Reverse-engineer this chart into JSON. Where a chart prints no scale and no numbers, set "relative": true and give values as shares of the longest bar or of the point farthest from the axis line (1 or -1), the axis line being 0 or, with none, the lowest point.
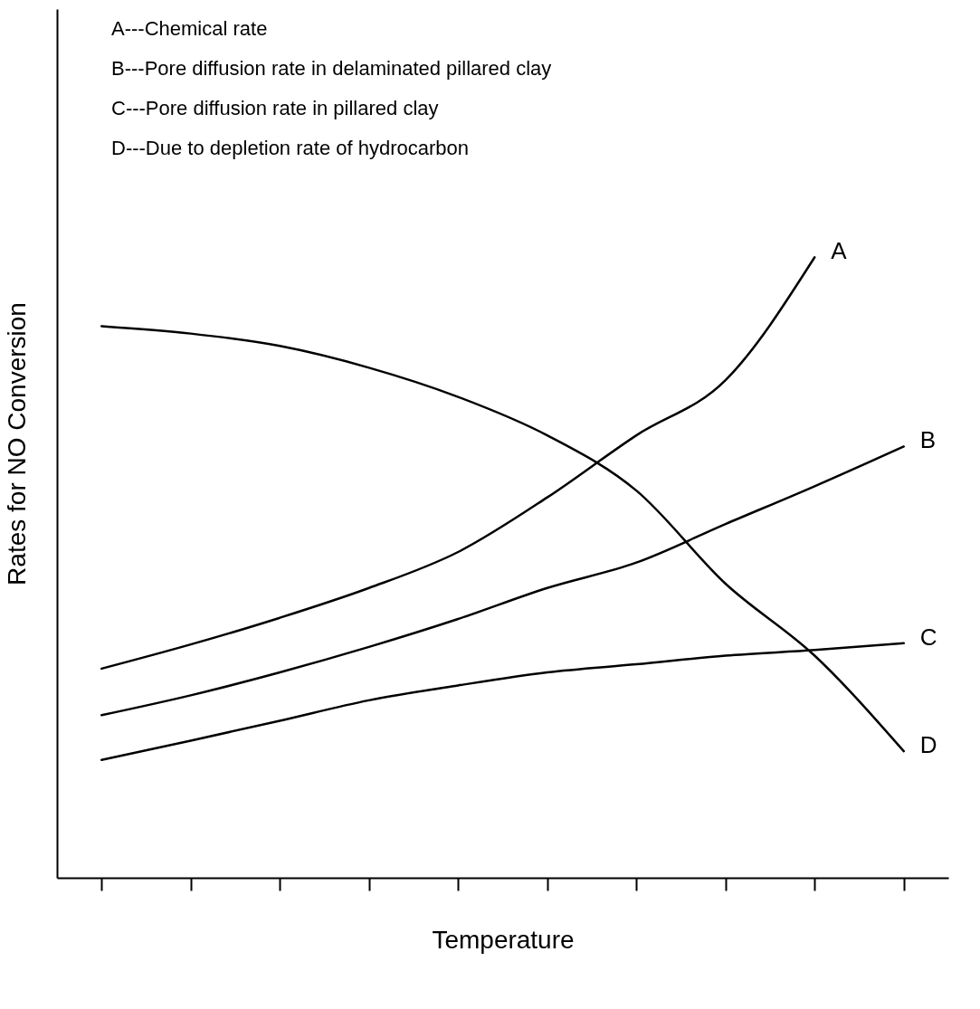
{
  "chart_data": {
    "type": "line",
    "relative": true,
    "xlabel": "Temperature",
    "ylabel": "Rates for NO Conversion",
    "categories": [
      null,
      null,
      null,
      null,
      null,
      null,
      null,
      null,
      null,
      null
    ],
    "series": [
      {
        "name": "A",
        "color": "#000000",
        "values": [
          0.337,
          0.376,
          0.419,
          0.467,
          0.525,
          0.613,
          0.713,
          0.802,
          1,
          null
        ]
      },
      {
        "name": "B",
        "color": "#000000",
        "values": [
          0.262,
          0.294,
          0.331,
          0.372,
          0.417,
          0.467,
          0.508,
          0.57,
          0.631,
          0.695
        ]
      },
      {
        "name": "C",
        "color": "#000000",
        "values": [
          0.19,
          0.221,
          0.253,
          0.286,
          0.31,
          0.331,
          0.344,
          0.358,
          0.367,
          0.378
        ]
      },
      {
        "name": "D",
        "color": "#000000",
        "values": [
          0.889,
          0.877,
          0.857,
          0.822,
          0.775,
          0.713,
          0.624,
          0.474,
          0.358,
          0.204
        ]
      }
    ],
    "annotations": [
      "A---Chemical rate",
      "B---Pore diffusion rate in delaminated pillared clay",
      "C---Pore diffusion rate in pillared clay",
      "D---Due to depletion rate of hydrocarbon"
    ],
    "tick_labels": false,
    "legend": false,
    "grid": false,
    "marker": "none",
    "line_style": "solid"
  }
}
